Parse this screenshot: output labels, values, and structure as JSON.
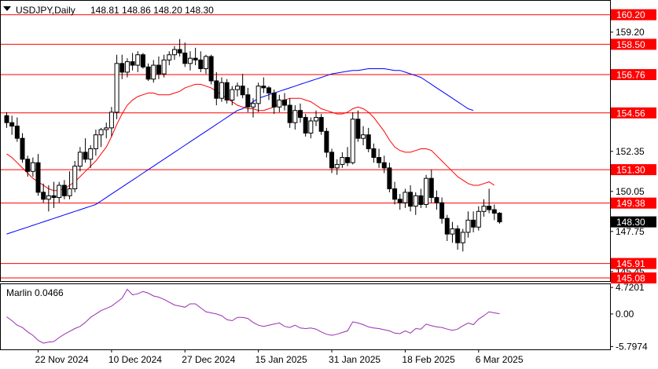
{
  "header": {
    "symbol": "USDJPY,Daily",
    "ohlc": "148.81 148.86 148.20 148.30"
  },
  "colors": {
    "level_line": "#ff0000",
    "ma_fast": "#ff0000",
    "ma_slow": "#0000ff",
    "oscillator": "#9a2fb0",
    "candle_up": "#ffffff",
    "candle_down": "#000000",
    "border": "#000000"
  },
  "chart_data": [
    {
      "type": "candlestick",
      "ylim": [
        144.9,
        161.0
      ],
      "y_ticks": [
        {
          "value": 159.2,
          "label": "159.20"
        },
        {
          "value": 152.35,
          "label": "152.35"
        },
        {
          "value": 150.05,
          "label": "150.05"
        },
        {
          "value": 147.75,
          "label": "147.75"
        },
        {
          "value": 145.45,
          "label": "145.45"
        }
      ],
      "levels": [
        {
          "value": 160.2,
          "label": "160.20"
        },
        {
          "value": 158.5,
          "label": "158.50"
        },
        {
          "value": 156.76,
          "label": "156.76"
        },
        {
          "value": 154.56,
          "label": "154.56"
        },
        {
          "value": 151.3,
          "label": "151.30"
        },
        {
          "value": 149.38,
          "label": "149.38"
        },
        {
          "value": 145.91,
          "label": "145.91"
        },
        {
          "value": 145.08,
          "label": "145.08"
        }
      ],
      "current_price": {
        "value": 148.3,
        "label": "148.30"
      },
      "x_labels": [
        {
          "index": 6,
          "label": "22 Nov 2024"
        },
        {
          "index": 20,
          "label": "10 Dec 2024"
        },
        {
          "index": 34,
          "label": "27 Dec 2024"
        },
        {
          "index": 48,
          "label": "15 Jan 2025"
        },
        {
          "index": 62,
          "label": "31 Jan 2025"
        },
        {
          "index": 76,
          "label": "18 Feb 2025"
        },
        {
          "index": 90,
          "label": "6 Mar 2025"
        }
      ],
      "candles": [
        [
          154.4,
          154.6,
          153.7,
          154.0
        ],
        [
          154.0,
          154.4,
          153.3,
          153.8
        ],
        [
          153.8,
          154.3,
          152.9,
          153.1
        ],
        [
          153.1,
          153.4,
          151.7,
          151.9
        ],
        [
          151.9,
          152.1,
          150.9,
          151.2
        ],
        [
          151.2,
          152.0,
          150.9,
          151.7
        ],
        [
          151.7,
          152.2,
          149.8,
          150.0
        ],
        [
          150.0,
          150.5,
          149.4,
          149.6
        ],
        [
          149.6,
          150.4,
          148.9,
          149.8
        ],
        [
          149.8,
          150.6,
          149.1,
          149.7
        ],
        [
          149.7,
          150.6,
          149.4,
          150.4
        ],
        [
          150.4,
          150.7,
          149.6,
          149.8
        ],
        [
          149.8,
          151.2,
          149.6,
          150.2
        ],
        [
          150.2,
          151.8,
          150.0,
          151.5
        ],
        [
          151.5,
          152.6,
          151.2,
          152.3
        ],
        [
          152.3,
          153.1,
          151.7,
          151.9
        ],
        [
          151.9,
          152.7,
          151.4,
          152.5
        ],
        [
          152.5,
          153.6,
          152.1,
          153.3
        ],
        [
          153.3,
          153.7,
          152.6,
          153.6
        ],
        [
          153.6,
          154.0,
          153.1,
          153.7
        ],
        [
          153.7,
          154.9,
          153.2,
          154.6
        ],
        [
          154.6,
          157.9,
          154.2,
          157.4
        ],
        [
          157.4,
          157.9,
          156.5,
          156.9
        ],
        [
          156.9,
          157.7,
          156.6,
          157.5
        ],
        [
          157.5,
          158.0,
          157.0,
          157.3
        ],
        [
          157.3,
          158.1,
          156.9,
          157.9
        ],
        [
          157.9,
          158.0,
          157.1,
          157.2
        ],
        [
          157.2,
          157.4,
          156.4,
          156.5
        ],
        [
          156.5,
          157.6,
          156.3,
          157.3
        ],
        [
          157.3,
          157.8,
          156.5,
          156.8
        ],
        [
          156.8,
          157.9,
          156.6,
          157.6
        ],
        [
          157.6,
          158.1,
          157.3,
          157.9
        ],
        [
          157.9,
          158.4,
          157.6,
          158.2
        ],
        [
          158.2,
          158.8,
          157.8,
          158.0
        ],
        [
          158.0,
          158.6,
          157.2,
          157.4
        ],
        [
          157.4,
          158.1,
          157.0,
          157.7
        ],
        [
          157.7,
          158.3,
          157.3,
          157.6
        ],
        [
          157.6,
          158.1,
          156.9,
          157.1
        ],
        [
          157.1,
          157.9,
          156.8,
          157.8
        ],
        [
          157.8,
          157.9,
          156.2,
          156.4
        ],
        [
          156.4,
          156.9,
          155.0,
          155.4
        ],
        [
          155.4,
          156.6,
          155.2,
          156.3
        ],
        [
          156.3,
          156.5,
          155.1,
          155.3
        ],
        [
          155.3,
          156.1,
          155.0,
          155.9
        ],
        [
          155.9,
          156.3,
          155.5,
          156.1
        ],
        [
          156.1,
          156.8,
          155.4,
          155.6
        ],
        [
          155.6,
          156.0,
          154.6,
          154.9
        ],
        [
          154.9,
          155.4,
          154.3,
          155.1
        ],
        [
          155.1,
          156.3,
          154.6,
          156.1
        ],
        [
          156.1,
          156.6,
          155.7,
          156.0
        ],
        [
          156.0,
          156.1,
          155.3,
          155.7
        ],
        [
          155.7,
          155.9,
          154.5,
          154.9
        ],
        [
          154.9,
          155.6,
          154.6,
          155.3
        ],
        [
          155.3,
          155.7,
          154.7,
          155.0
        ],
        [
          155.0,
          155.4,
          153.7,
          154.0
        ],
        [
          154.0,
          155.0,
          153.6,
          154.7
        ],
        [
          154.7,
          155.1,
          154.0,
          154.3
        ],
        [
          154.3,
          154.5,
          153.2,
          153.4
        ],
        [
          153.4,
          154.3,
          153.1,
          154.1
        ],
        [
          154.1,
          154.7,
          153.8,
          154.3
        ],
        [
          154.3,
          154.5,
          153.3,
          153.5
        ],
        [
          153.5,
          153.7,
          152.0,
          152.3
        ],
        [
          152.3,
          152.5,
          151.1,
          151.4
        ],
        [
          151.4,
          151.9,
          151.0,
          151.6
        ],
        [
          151.6,
          152.3,
          151.4,
          152.0
        ],
        [
          152.0,
          152.6,
          151.5,
          151.7
        ],
        [
          151.7,
          154.6,
          151.6,
          154.2
        ],
        [
          154.2,
          154.7,
          152.9,
          153.1
        ],
        [
          153.1,
          153.8,
          152.7,
          153.3
        ],
        [
          153.3,
          153.7,
          152.3,
          152.5
        ],
        [
          152.5,
          152.8,
          151.7,
          152.0
        ],
        [
          152.0,
          152.5,
          151.4,
          151.7
        ],
        [
          151.7,
          152.1,
          151.1,
          151.4
        ],
        [
          151.4,
          151.7,
          150.0,
          150.2
        ],
        [
          150.2,
          150.6,
          149.3,
          149.6
        ],
        [
          149.6,
          149.9,
          149.0,
          149.4
        ],
        [
          149.4,
          150.2,
          149.1,
          150.0
        ],
        [
          150.0,
          150.4,
          148.9,
          149.2
        ],
        [
          149.2,
          150.0,
          148.7,
          149.8
        ],
        [
          149.8,
          150.2,
          149.1,
          149.3
        ],
        [
          149.3,
          151.0,
          149.1,
          150.8
        ],
        [
          150.8,
          151.3,
          149.4,
          149.7
        ],
        [
          149.7,
          150.1,
          149.0,
          149.4
        ],
        [
          149.4,
          149.7,
          148.2,
          148.5
        ],
        [
          148.5,
          148.7,
          147.2,
          147.6
        ],
        [
          147.6,
          148.3,
          147.1,
          147.9
        ],
        [
          147.9,
          148.1,
          146.7,
          147.1
        ],
        [
          147.1,
          147.9,
          146.6,
          147.7
        ],
        [
          147.7,
          148.9,
          147.4,
          148.4
        ],
        [
          148.4,
          148.9,
          147.7,
          148.0
        ],
        [
          148.0,
          149.2,
          147.8,
          148.9
        ],
        [
          148.9,
          149.6,
          148.6,
          149.2
        ],
        [
          149.2,
          150.2,
          148.8,
          149.0
        ],
        [
          149.0,
          149.3,
          148.4,
          148.8
        ],
        [
          148.8,
          148.86,
          148.2,
          148.3
        ]
      ],
      "ma_fast": [
        152.2,
        152.0,
        151.7,
        151.4,
        151.1,
        150.8,
        150.6,
        150.4,
        150.2,
        150.1,
        150.1,
        150.2,
        150.4,
        150.6,
        150.9,
        151.2,
        151.5,
        151.8,
        152.2,
        152.6,
        153.2,
        153.9,
        154.5,
        155.0,
        155.3,
        155.5,
        155.6,
        155.7,
        155.7,
        155.6,
        155.6,
        155.6,
        155.7,
        155.8,
        156.0,
        156.1,
        156.2,
        156.2,
        156.1,
        156.0,
        155.8,
        155.6,
        155.4,
        155.2,
        155.0,
        154.9,
        154.8,
        154.8,
        154.7,
        154.7,
        154.8,
        154.9,
        155.1,
        155.3,
        155.4,
        155.4,
        155.4,
        155.3,
        155.2,
        155.0,
        154.8,
        154.7,
        154.6,
        154.5,
        154.5,
        154.6,
        154.8,
        154.9,
        154.8,
        154.6,
        154.3,
        153.9,
        153.5,
        153.0,
        152.6,
        152.4,
        152.3,
        152.3,
        152.4,
        152.5,
        152.5,
        152.4,
        152.1,
        151.8,
        151.5,
        151.2,
        150.9,
        150.7,
        150.5,
        150.4,
        150.4,
        150.5,
        150.6,
        150.4
      ],
      "ma_slow": [
        147.6,
        147.7,
        147.8,
        147.9,
        148.0,
        148.1,
        148.2,
        148.3,
        148.4,
        148.5,
        148.6,
        148.7,
        148.8,
        148.9,
        149.0,
        149.1,
        149.2,
        149.3,
        149.5,
        149.7,
        149.9,
        150.1,
        150.3,
        150.5,
        150.7,
        150.9,
        151.1,
        151.3,
        151.5,
        151.7,
        151.9,
        152.1,
        152.3,
        152.5,
        152.7,
        152.9,
        153.1,
        153.3,
        153.5,
        153.7,
        153.9,
        154.1,
        154.3,
        154.5,
        154.7,
        154.8,
        155.0,
        155.2,
        155.4,
        155.5,
        155.6,
        155.7,
        155.8,
        155.9,
        156.0,
        156.1,
        156.2,
        156.3,
        156.4,
        156.5,
        156.6,
        156.7,
        156.8,
        156.85,
        156.9,
        156.95,
        157.0,
        157.0,
        157.05,
        157.1,
        157.1,
        157.1,
        157.1,
        157.05,
        157.0,
        157.0,
        156.9,
        156.8,
        156.7,
        156.6,
        156.4,
        156.2,
        156.0,
        155.8,
        155.6,
        155.4,
        155.2,
        155.0,
        154.8,
        154.7
      ],
      "ma_slow_last_index": 89
    },
    {
      "type": "line",
      "title": "Marlin 0.0466",
      "ylim": [
        -6.3,
        5.3
      ],
      "y_ticks": [
        {
          "value": 4.7201,
          "label": "4.7201"
        },
        {
          "value": 0.0,
          "label": "0.00"
        },
        {
          "value": -5.7974,
          "label": "-5.7974"
        }
      ],
      "values": [
        -0.5,
        -1.2,
        -2.0,
        -2.4,
        -3.2,
        -3.8,
        -4.7,
        -5.2,
        -5.0,
        -4.9,
        -4.2,
        -3.6,
        -3.1,
        -2.6,
        -2.2,
        -1.5,
        -0.6,
        0.0,
        0.6,
        1.0,
        1.4,
        2.1,
        2.8,
        4.4,
        3.4,
        3.6,
        4.0,
        3.7,
        3.2,
        3.0,
        2.6,
        2.1,
        1.6,
        1.4,
        1.2,
        1.8,
        1.8,
        1.1,
        0.4,
        0.2,
        0.0,
        -0.3,
        -1.0,
        -1.2,
        -0.6,
        -0.6,
        -0.8,
        -1.5,
        -2.0,
        -2.2,
        -2.0,
        -1.8,
        -1.6,
        -2.2,
        -2.4,
        -2.0,
        -2.5,
        -2.6,
        -2.5,
        -2.7,
        -3.2,
        -3.6,
        -3.8,
        -3.6,
        -3.3,
        -3.0,
        -1.4,
        -1.6,
        -1.9,
        -2.3,
        -2.5,
        -2.6,
        -2.8,
        -3.0,
        -3.4,
        -3.5,
        -3.0,
        -3.4,
        -2.6,
        -2.7,
        -1.8,
        -2.1,
        -2.3,
        -2.4,
        -2.7,
        -2.9,
        -2.7,
        -2.1,
        -1.6,
        -1.9,
        -0.9,
        -0.3,
        0.4,
        0.2,
        0.05
      ]
    }
  ]
}
